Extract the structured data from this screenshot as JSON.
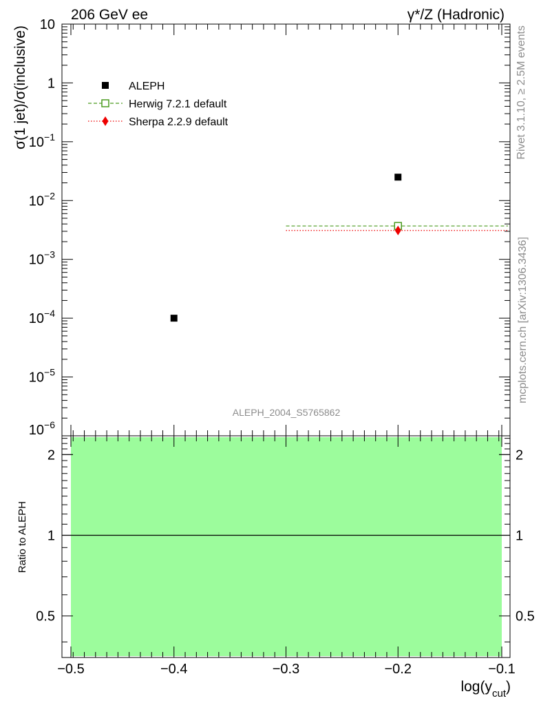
{
  "header": {
    "left": "206 GeV ee",
    "right": "γ*/Z (Hadronic)"
  },
  "side_labels": {
    "upper": "Rivet 3.1.10, ≥ 2.5M events",
    "lower": "mcplots.cern.ch [arXiv:1306.3436]"
  },
  "watermark": "ALEPH_2004_S5765862",
  "chart_data": [
    {
      "type": "scatter",
      "panel": "main",
      "ylabel": "σ(1 jet)/σ(inclusive)",
      "xlim": [
        -0.5,
        -0.1
      ],
      "ylim": [
        1e-06,
        10
      ],
      "yscale": "log",
      "ytick_labels": [
        {
          "v": 10,
          "m": "10",
          "e": ""
        },
        {
          "v": 1,
          "m": "1",
          "e": ""
        },
        {
          "v": 0.1,
          "m": "10",
          "e": "−1"
        },
        {
          "v": 0.01,
          "m": "10",
          "e": "−2"
        },
        {
          "v": 0.001,
          "m": "10",
          "e": "−3"
        },
        {
          "v": 0.0001,
          "m": "10",
          "e": "−4"
        },
        {
          "v": 1e-05,
          "m": "10",
          "e": "−5"
        },
        {
          "v": 1e-06,
          "m": "10",
          "e": "−6"
        }
      ],
      "legend": [
        {
          "name": "ALEPH",
          "color": "#000000",
          "marker": "filled-square",
          "line": "none"
        },
        {
          "name": "Herwig 7.2.1 default",
          "color": "#4a9a1e",
          "marker": "open-square",
          "line": "dashed"
        },
        {
          "name": "Sherpa 2.2.9 default",
          "color": "#ee0000",
          "marker": "diamond",
          "line": "dotted"
        }
      ],
      "series": [
        {
          "name": "ALEPH",
          "points": [
            {
              "x": -0.4,
              "y": 0.0001
            },
            {
              "x": -0.2,
              "y": 0.025
            }
          ]
        },
        {
          "name": "Herwig 7.2.1 default",
          "bins": [
            {
              "x0": -0.3,
              "x1": -0.1,
              "xc": -0.2,
              "y": 0.0037
            }
          ]
        },
        {
          "name": "Sherpa 2.2.9 default",
          "bins": [
            {
              "x0": -0.3,
              "x1": -0.1,
              "xc": -0.2,
              "y": 0.0031
            }
          ]
        }
      ]
    },
    {
      "type": "area",
      "panel": "ratio",
      "ylabel": "Ratio to ALEPH",
      "xlabel_main": "log(y",
      "xlabel_sub": "cut",
      "xlabel_end": ")",
      "xlim": [
        -0.5,
        -0.1
      ],
      "ylim": [
        0.35,
        2.35
      ],
      "yscale": "log",
      "yticks": [
        0.5,
        1,
        2
      ],
      "ytick_labels": [
        "0.5",
        "1",
        "2"
      ],
      "xticks": [
        -0.5,
        -0.4,
        -0.3,
        -0.2,
        -0.1
      ],
      "xtick_labels": [
        "−0.5",
        "−0.4",
        "−0.3",
        "−0.2",
        "−0.1"
      ],
      "band": {
        "x0": -0.5,
        "x1": -0.1,
        "color": "#9cfc9c"
      },
      "reference_line": 1
    }
  ]
}
